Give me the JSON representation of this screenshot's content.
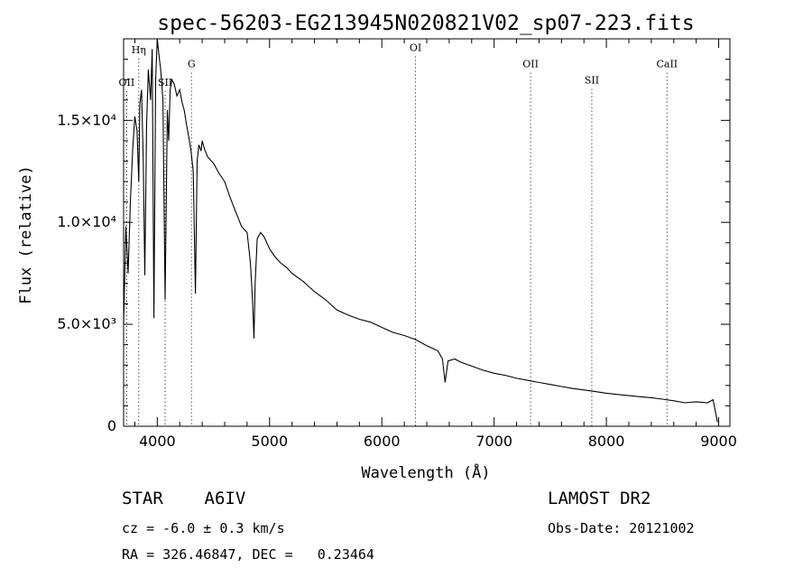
{
  "chart_data": {
    "type": "line",
    "title": "spec-56203-EG213945N020821V02_sp07-223.fits",
    "xlabel": "Wavelength (Å)",
    "ylabel": "Flux (relative)",
    "xlim": [
      3700,
      9100
    ],
    "ylim": [
      0,
      19000
    ],
    "x_ticks": [
      {
        "value": 4000,
        "label": "4000"
      },
      {
        "value": 5000,
        "label": "5000"
      },
      {
        "value": 6000,
        "label": "6000"
      },
      {
        "value": 7000,
        "label": "7000"
      },
      {
        "value": 8000,
        "label": "8000"
      },
      {
        "value": 9000,
        "label": "9000"
      }
    ],
    "y_ticks": [
      {
        "value": 0,
        "label": "0"
      },
      {
        "value": 5000,
        "label": "5.0×10³"
      },
      {
        "value": 10000,
        "label": "1.0×10⁴"
      },
      {
        "value": 15000,
        "label": "1.5×10⁴"
      }
    ],
    "lines": [
      {
        "label": "OII",
        "wavelength": 3727,
        "label_flux": 16700
      },
      {
        "label": "Hη",
        "wavelength": 3835,
        "label_flux": 18300
      },
      {
        "label": "SII",
        "wavelength": 4070,
        "label_flux": 16700
      },
      {
        "label": "G",
        "wavelength": 4305,
        "label_flux": 17600
      },
      {
        "label": "OI",
        "wavelength": 6300,
        "label_flux": 18400
      },
      {
        "label": "OII",
        "wavelength": 7325,
        "label_flux": 17600
      },
      {
        "label": "SII",
        "wavelength": 7870,
        "label_flux": 16800
      },
      {
        "label": "CaII",
        "wavelength": 8540,
        "label_flux": 17600
      }
    ],
    "series": [
      {
        "x": [
          3700,
          3720,
          3740,
          3760,
          3780,
          3800,
          3820,
          3835,
          3845,
          3860,
          3875,
          3889,
          3905,
          3920,
          3940,
          3955,
          3970,
          3985,
          4000,
          4015,
          4030,
          4050,
          4070,
          4090,
          4102,
          4115,
          4130,
          4150,
          4175,
          4200,
          4220,
          4240,
          4260,
          4280,
          4300,
          4320,
          4340,
          4355,
          4370,
          4390,
          4400,
          4420,
          4450,
          4500,
          4550,
          4600,
          4650,
          4700,
          4750,
          4800,
          4830,
          4850,
          4861,
          4872,
          4890,
          4920,
          4950,
          5000,
          5050,
          5100,
          5150,
          5200,
          5250,
          5300,
          5400,
          5500,
          5600,
          5700,
          5800,
          5900,
          6000,
          6100,
          6200,
          6300,
          6400,
          6500,
          6540,
          6563,
          6590,
          6650,
          6700,
          6800,
          6900,
          7000,
          7100,
          7200,
          7300,
          7400,
          7500,
          7600,
          7700,
          7800,
          7900,
          8000,
          8100,
          8200,
          8300,
          8400,
          8500,
          8600,
          8700,
          8800,
          8900,
          8950,
          8990
        ],
        "y": [
          5000,
          9800,
          7500,
          11000,
          13500,
          15200,
          14500,
          12000,
          15800,
          16500,
          13000,
          7400,
          14800,
          17500,
          16000,
          18500,
          5300,
          17000,
          19000,
          18200,
          17500,
          16000,
          6200,
          15500,
          14000,
          16500,
          17000,
          16800,
          16200,
          16500,
          15900,
          15500,
          14800,
          14200,
          13500,
          12500,
          6500,
          13000,
          13800,
          13500,
          14000,
          13600,
          13200,
          12900,
          12400,
          12000,
          11200,
          10500,
          9800,
          9500,
          8000,
          6000,
          4300,
          7000,
          9200,
          9500,
          9300,
          8700,
          8300,
          8000,
          7800,
          7500,
          7300,
          7100,
          6600,
          6200,
          5700,
          5450,
          5250,
          5100,
          4850,
          4600,
          4450,
          4250,
          3950,
          3700,
          3300,
          2150,
          3200,
          3300,
          3150,
          2950,
          2750,
          2600,
          2500,
          2350,
          2250,
          2150,
          2050,
          1950,
          1850,
          1780,
          1700,
          1620,
          1560,
          1500,
          1450,
          1400,
          1330,
          1250,
          1150,
          1200,
          1150,
          1300,
          200
        ]
      }
    ]
  },
  "info": {
    "object_class": "STAR    A6IV",
    "survey": "LAMOST DR2",
    "cz": "cz = -6.0 ± 0.3 km/s",
    "obs_date": "Obs-Date: 20121002",
    "radec": "RA = 326.46847, DEC =   0.23464"
  }
}
